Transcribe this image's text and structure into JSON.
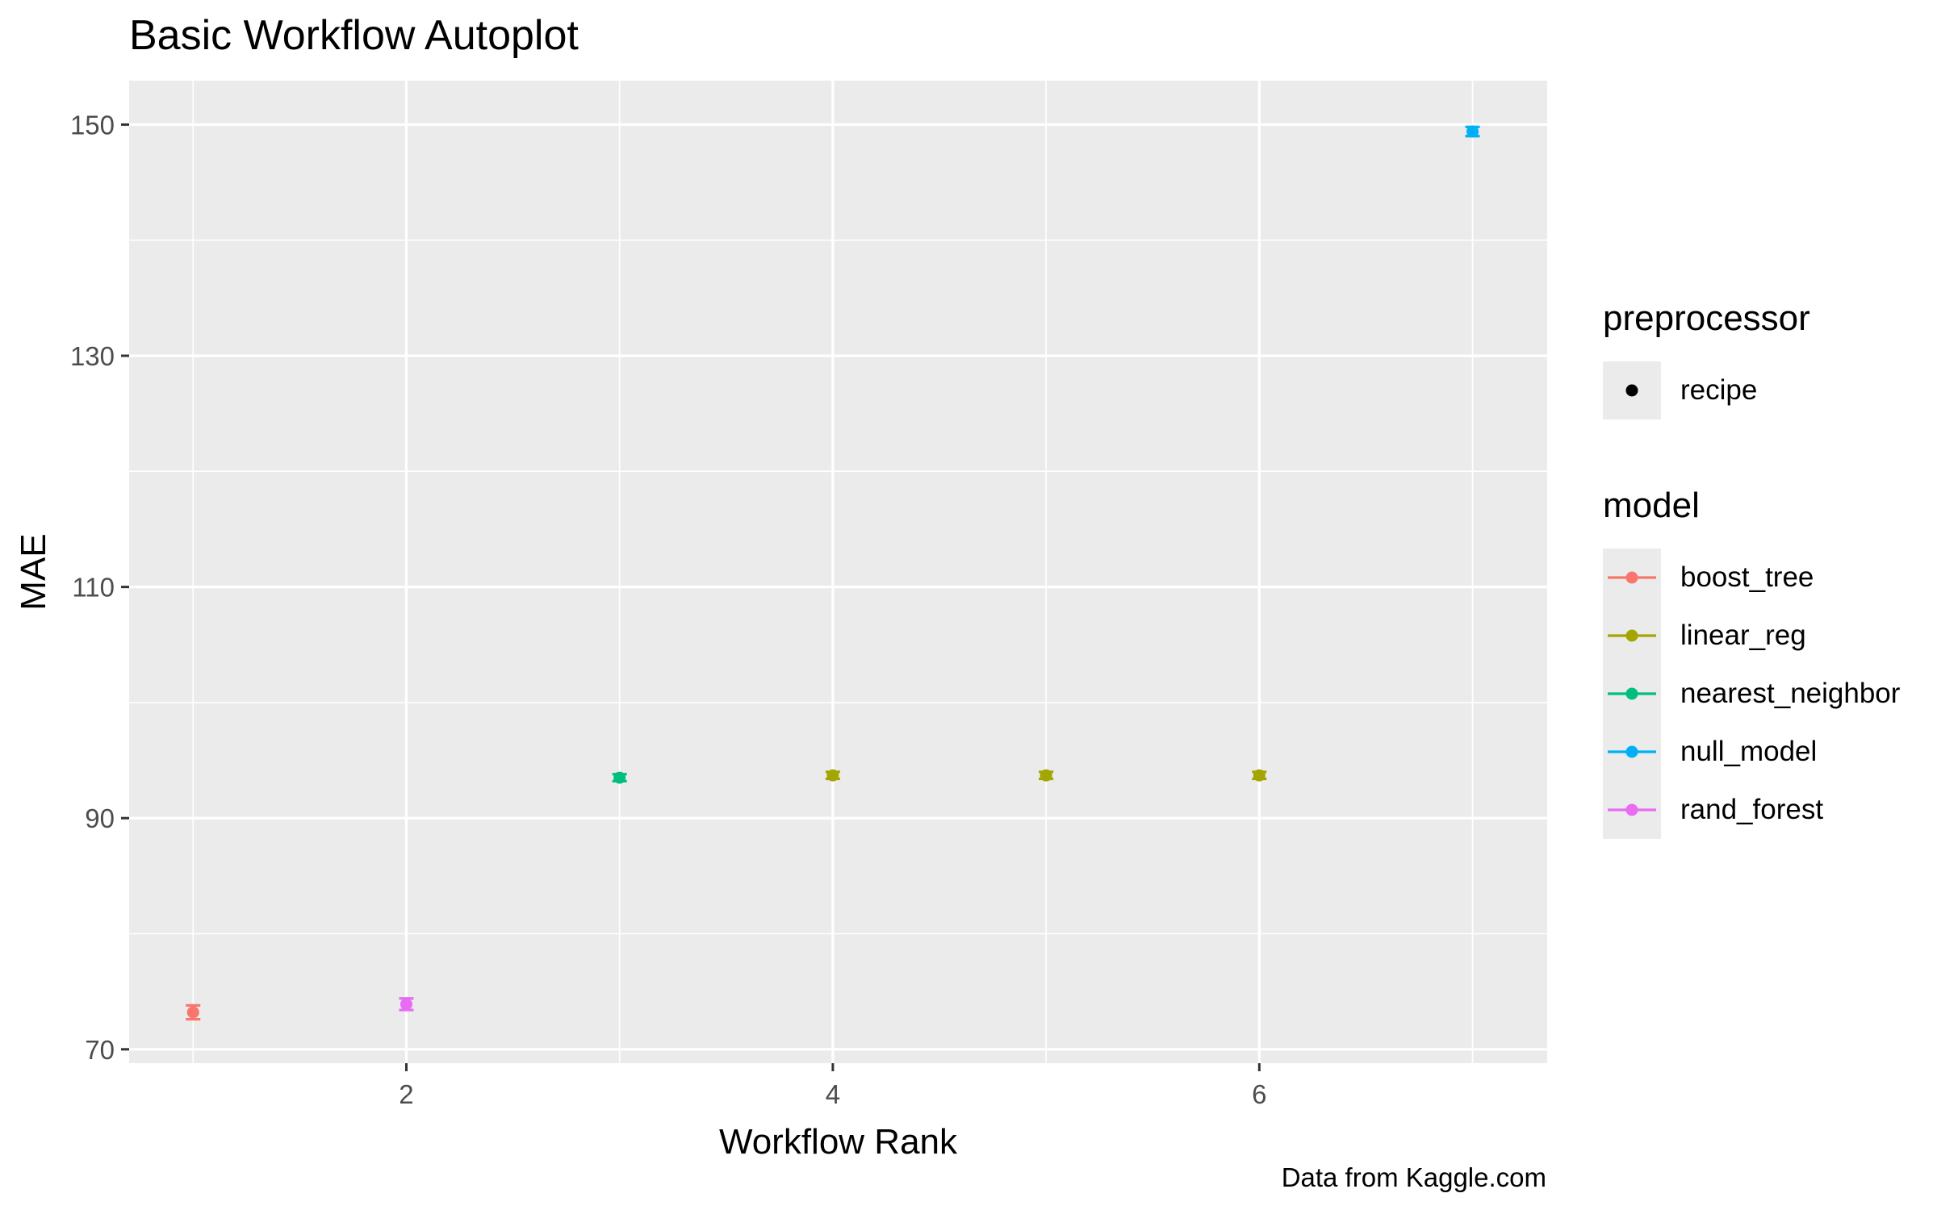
{
  "chart_data": {
    "type": "scatter",
    "title": "Basic Workflow Autoplot",
    "caption": "Data from Kaggle.com",
    "xlabel": "Workflow Rank",
    "ylabel": "MAE",
    "xlim": [
      0.7,
      7.35
    ],
    "ylim": [
      68.8,
      153.8
    ],
    "x_ticks": [
      2,
      4,
      6
    ],
    "y_ticks": [
      70,
      90,
      110,
      130,
      150
    ],
    "grid": true,
    "legend_position": "right",
    "legends": {
      "preprocessor": {
        "title": "preprocessor",
        "entries": [
          "recipe"
        ]
      },
      "model": {
        "title": "model",
        "entries": [
          "boost_tree",
          "linear_reg",
          "nearest_neighbor",
          "null_model",
          "rand_forest"
        ]
      }
    },
    "colors": {
      "boost_tree": "#f8766d",
      "linear_reg": "#a3a500",
      "nearest_neighbor": "#00bf7d",
      "null_model": "#00b0f6",
      "rand_forest": "#e76bf3"
    },
    "points": [
      {
        "rank": 1,
        "model": "boost_tree",
        "preprocessor": "recipe",
        "mae": 73.2,
        "lower": 72.6,
        "upper": 73.8
      },
      {
        "rank": 2,
        "model": "rand_forest",
        "preprocessor": "recipe",
        "mae": 73.9,
        "lower": 73.4,
        "upper": 74.4
      },
      {
        "rank": 3,
        "model": "nearest_neighbor",
        "preprocessor": "recipe",
        "mae": 93.5,
        "lower": 93.2,
        "upper": 93.8
      },
      {
        "rank": 4,
        "model": "linear_reg",
        "preprocessor": "recipe",
        "mae": 93.7,
        "lower": 93.4,
        "upper": 94.0
      },
      {
        "rank": 5,
        "model": "linear_reg",
        "preprocessor": "recipe",
        "mae": 93.7,
        "lower": 93.4,
        "upper": 94.0
      },
      {
        "rank": 6,
        "model": "linear_reg",
        "preprocessor": "recipe",
        "mae": 93.7,
        "lower": 93.4,
        "upper": 94.0
      },
      {
        "rank": 7,
        "model": "null_model",
        "preprocessor": "recipe",
        "mae": 149.4,
        "lower": 149.0,
        "upper": 149.8
      }
    ]
  }
}
